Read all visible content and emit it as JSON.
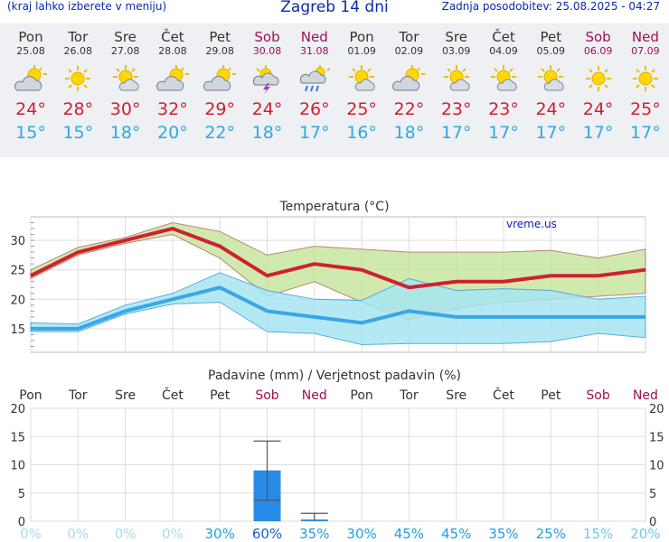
{
  "header": {
    "left_note": "(kraj lahko izberete v meniju)",
    "title": "Zagreb 14 dni",
    "updated": "Zadnja posodobitev: 25.08.2025 - 04:27"
  },
  "days": [
    {
      "name": "Pon",
      "date": "25.08",
      "weekend": false,
      "icon": "sun-cloud-icon",
      "tmax": "24°",
      "tmin": "15°"
    },
    {
      "name": "Tor",
      "date": "26.08",
      "weekend": false,
      "icon": "sun-icon",
      "tmax": "28°",
      "tmin": "15°"
    },
    {
      "name": "Sre",
      "date": "27.08",
      "weekend": false,
      "icon": "sun-small-cloud-icon",
      "tmax": "30°",
      "tmin": "18°"
    },
    {
      "name": "Čet",
      "date": "28.08",
      "weekend": false,
      "icon": "sun-cloud-icon",
      "tmax": "32°",
      "tmin": "20°"
    },
    {
      "name": "Pet",
      "date": "29.08",
      "weekend": false,
      "icon": "sun-cloud-icon",
      "tmax": "29°",
      "tmin": "22°"
    },
    {
      "name": "Sob",
      "date": "30.08",
      "weekend": true,
      "icon": "thunderstorm-icon",
      "tmax": "24°",
      "tmin": "18°"
    },
    {
      "name": "Ned",
      "date": "31.08",
      "weekend": true,
      "icon": "rain-cloud-icon",
      "tmax": "26°",
      "tmin": "17°"
    },
    {
      "name": "Pon",
      "date": "01.09",
      "weekend": false,
      "icon": "sun-small-cloud-icon",
      "tmax": "25°",
      "tmin": "16°"
    },
    {
      "name": "Tor",
      "date": "02.09",
      "weekend": false,
      "icon": "sun-cloud-icon",
      "tmax": "22°",
      "tmin": "18°"
    },
    {
      "name": "Sre",
      "date": "03.09",
      "weekend": false,
      "icon": "sun-small-cloud-icon",
      "tmax": "23°",
      "tmin": "17°"
    },
    {
      "name": "Čet",
      "date": "04.09",
      "weekend": false,
      "icon": "sun-small-cloud-icon",
      "tmax": "23°",
      "tmin": "17°"
    },
    {
      "name": "Pet",
      "date": "05.09",
      "weekend": false,
      "icon": "sun-small-cloud-icon",
      "tmax": "24°",
      "tmin": "17°"
    },
    {
      "name": "Sob",
      "date": "06.09",
      "weekend": true,
      "icon": "sun-icon",
      "tmax": "24°",
      "tmin": "17°"
    },
    {
      "name": "Ned",
      "date": "07.09",
      "weekend": true,
      "icon": "sun-icon",
      "tmax": "25°",
      "tmin": "17°"
    }
  ],
  "colors": {
    "tmax": "#d02030",
    "tmin": "#30a8e0",
    "weekend": "#a01050",
    "max_band": "#c8e6a0",
    "min_band": "#a8e6f2",
    "overlap": "#8dd48d",
    "precip_bar": "#2a8ae8",
    "precip_prob": "#20a0e0",
    "precip_prob_zero": "#a8dcf0"
  },
  "chart_data": [
    {
      "type": "line",
      "title": "Temperatura (°C)",
      "watermark": "vreme.us",
      "categories": [
        "Pon",
        "Tor",
        "Sre",
        "Čet",
        "Pet",
        "Sob",
        "Ned",
        "Pon",
        "Tor",
        "Sre",
        "Čet",
        "Pet",
        "Sob",
        "Ned"
      ],
      "ylim": [
        11,
        34
      ],
      "yticks": [
        15,
        20,
        25,
        30
      ],
      "series": [
        {
          "values": [
            24,
            28,
            30,
            32,
            29,
            24,
            26,
            25,
            22,
            23,
            23,
            24,
            24,
            25
          ]
        },
        {
          "values": [
            15,
            15,
            18,
            20,
            22,
            18,
            17,
            16,
            18,
            17,
            17,
            17,
            17,
            17
          ]
        }
      ],
      "max_range_high": [
        25,
        28.8,
        30.5,
        33,
        31.5,
        27.5,
        29,
        28.5,
        28,
        28,
        28,
        28.3,
        27,
        28.5
      ],
      "max_range_low": [
        23.5,
        27.5,
        29.5,
        31,
        27,
        20.5,
        23,
        19.5,
        16.5,
        18.5,
        19.5,
        20,
        20.5,
        21
      ],
      "min_range_high": [
        16,
        15.8,
        19,
        21,
        24.5,
        21.5,
        20,
        19.8,
        23.5,
        21.5,
        21.8,
        21.5,
        20,
        20.5
      ],
      "min_range_low": [
        14.5,
        14.5,
        17.5,
        19.2,
        19.5,
        14.5,
        14.2,
        12.3,
        12.5,
        12.5,
        12.5,
        12.8,
        14.2,
        13.5
      ],
      "grid": true
    },
    {
      "type": "bar",
      "title": "Padavine (mm) / Verjetnost padavin (%)",
      "categories": [
        "Pon",
        "Tor",
        "Sre",
        "Čet",
        "Pet",
        "Sob",
        "Ned",
        "Pon",
        "Tor",
        "Sre",
        "Čet",
        "Pet",
        "Sob",
        "Ned"
      ],
      "ylim": [
        0,
        20
      ],
      "yticks": [
        0,
        5,
        10,
        15,
        20
      ],
      "values": [
        0,
        0,
        0,
        0,
        0,
        9,
        0.3,
        0,
        0,
        0,
        0,
        0,
        0,
        0
      ],
      "error_high": [
        0,
        0,
        0,
        0,
        0,
        14.2,
        1.4,
        0,
        0,
        0,
        0,
        0,
        0,
        0
      ],
      "error_low": [
        0,
        0,
        0,
        0,
        0,
        3.7,
        0,
        0,
        0,
        0,
        0,
        0,
        0,
        0
      ],
      "probability": [
        "0%",
        "0%",
        "0%",
        "0%",
        "30%",
        "60%",
        "35%",
        "30%",
        "45%",
        "45%",
        "35%",
        "25%",
        "15%",
        "20%"
      ],
      "grid": true
    }
  ]
}
